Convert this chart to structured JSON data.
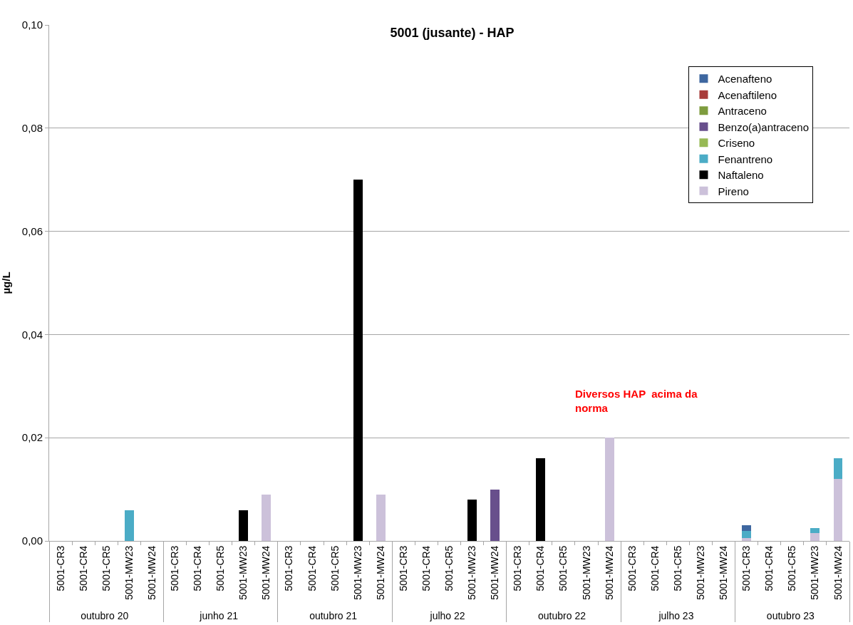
{
  "chart_data": {
    "type": "bar",
    "stacked": true,
    "title": "5001 (jusante) - HAP",
    "ylabel": "µg/L",
    "categories": [
      "5001-CR3",
      "5001-CR4",
      "5001-CR5",
      "5001-MW23",
      "5001-MW24",
      "5001-CR3",
      "5001-CR4",
      "5001-CR5",
      "5001-MW23",
      "5001-MW24",
      "5001-CR3",
      "5001-CR4",
      "5001-CR5",
      "5001-MW23",
      "5001-MW24",
      "5001-CR3",
      "5001-CR4",
      "5001-CR5",
      "5001-MW23",
      "5001-MW24",
      "5001-CR3",
      "5001-CR4",
      "5001-CR5",
      "5001-MW23",
      "5001-MW24",
      "5001-CR3",
      "5001-CR4",
      "5001-CR5",
      "5001-MW23",
      "5001-MW24",
      "5001-CR3",
      "5001-CR4",
      "5001-CR5",
      "5001-MW23",
      "5001-MW24"
    ],
    "annotations": [
      "outubro 20",
      "junho 21",
      "outubro 21",
      "julho 22",
      "outubro 22",
      "julho 23",
      "outubro 23",
      "Diversos HAP  acima da norma"
    ],
    "series": [
      {
        "name": "Pireno",
        "color": "#ccc1da",
        "values": [
          null,
          null,
          null,
          null,
          null,
          null,
          null,
          null,
          null,
          0.009,
          null,
          null,
          null,
          null,
          0.009,
          null,
          null,
          null,
          null,
          null,
          null,
          null,
          null,
          null,
          0.02,
          null,
          null,
          null,
          null,
          null,
          0.0005,
          null,
          null,
          0.0015,
          0.012
        ]
      },
      {
        "name": "Naftaleno",
        "color": "#000000",
        "values": [
          null,
          null,
          null,
          null,
          null,
          null,
          null,
          null,
          0.006,
          null,
          null,
          null,
          null,
          0.07,
          null,
          null,
          null,
          null,
          0.008,
          null,
          null,
          0.016,
          null,
          null,
          null,
          null,
          null,
          null,
          null,
          null,
          null,
          null,
          null,
          null,
          null
        ]
      },
      {
        "name": "Fenantreno",
        "color": "#4bacc6",
        "values": [
          null,
          null,
          null,
          0.006,
          null,
          null,
          null,
          null,
          null,
          null,
          null,
          null,
          null,
          null,
          null,
          null,
          null,
          null,
          null,
          null,
          null,
          null,
          null,
          null,
          null,
          null,
          null,
          null,
          null,
          null,
          0.0015,
          null,
          null,
          0.001,
          0.004
        ]
      },
      {
        "name": "Criseno",
        "color": "#97b955",
        "values": [
          null,
          null,
          null,
          null,
          null,
          null,
          null,
          null,
          null,
          null,
          null,
          null,
          null,
          null,
          null,
          null,
          null,
          null,
          null,
          null,
          null,
          null,
          null,
          null,
          null,
          null,
          null,
          null,
          null,
          null,
          null,
          null,
          null,
          null,
          null
        ]
      },
      {
        "name": "Benzo(a)antraceno",
        "color": "#684f8c",
        "values": [
          null,
          null,
          null,
          null,
          null,
          null,
          null,
          null,
          null,
          null,
          null,
          null,
          null,
          null,
          null,
          null,
          null,
          null,
          null,
          0.01,
          null,
          null,
          null,
          null,
          null,
          null,
          null,
          null,
          null,
          null,
          null,
          null,
          null,
          null,
          null
        ]
      },
      {
        "name": "Antraceno",
        "color": "#7e9c3e",
        "values": [
          null,
          null,
          null,
          null,
          null,
          null,
          null,
          null,
          null,
          null,
          null,
          null,
          null,
          null,
          null,
          null,
          null,
          null,
          null,
          null,
          null,
          null,
          null,
          null,
          null,
          null,
          null,
          null,
          null,
          null,
          null,
          null,
          null,
          null,
          null
        ]
      },
      {
        "name": "Acenaftileno",
        "color": "#a83c3a",
        "values": [
          null,
          null,
          null,
          null,
          null,
          null,
          null,
          null,
          null,
          null,
          null,
          null,
          null,
          null,
          null,
          null,
          null,
          null,
          null,
          null,
          null,
          null,
          null,
          null,
          null,
          null,
          null,
          null,
          null,
          null,
          null,
          null,
          null,
          null,
          null
        ]
      },
      {
        "name": "Acenafteno",
        "color": "#3e67a0",
        "values": [
          null,
          null,
          null,
          null,
          null,
          null,
          null,
          null,
          null,
          null,
          null,
          null,
          null,
          null,
          null,
          null,
          null,
          null,
          null,
          null,
          null,
          null,
          null,
          null,
          null,
          null,
          null,
          null,
          null,
          null,
          0.001,
          null,
          null,
          null,
          null
        ]
      }
    ],
    "ylim": [
      0,
      0.1
    ],
    "yticks": [
      {
        "value": 0,
        "label": "0,00"
      },
      {
        "value": 0.02,
        "label": "0,02"
      },
      {
        "value": 0.04,
        "label": "0,04"
      },
      {
        "value": 0.06,
        "label": "0,06"
      },
      {
        "value": 0.08,
        "label": "0,08"
      },
      {
        "value": 0.1,
        "label": "0,10"
      }
    ],
    "grid": "y",
    "legend": "top right"
  }
}
